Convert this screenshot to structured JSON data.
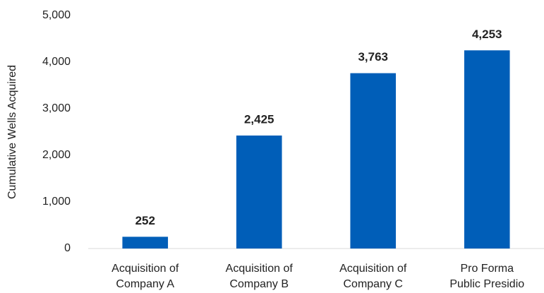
{
  "chart_data": {
    "type": "bar",
    "y_axis_label": "Cumulative Wells Acquired",
    "categories": [
      [
        "Acquisition of",
        "Company A"
      ],
      [
        "Acquisition of",
        "Company B"
      ],
      [
        "Acquisition of",
        "Company C"
      ],
      [
        "Pro Forma",
        "Public Presidio"
      ]
    ],
    "values": [
      252,
      2425,
      3763,
      4253
    ],
    "value_labels": [
      "252",
      "2,425",
      "3,763",
      "4,253"
    ],
    "color": "#005eb8",
    "ylim": [
      0,
      5000
    ],
    "yticks": [
      0,
      {
        "value": 1000,
        "label": "1,000"
      },
      {
        "value": 2000,
        "label": "2,000"
      },
      {
        "value": 3000,
        "label": "3,000"
      },
      {
        "value": 4000,
        "label": "4,000"
      },
      {
        "value": 5000,
        "label": "5,000"
      }
    ],
    "grid": false
  }
}
